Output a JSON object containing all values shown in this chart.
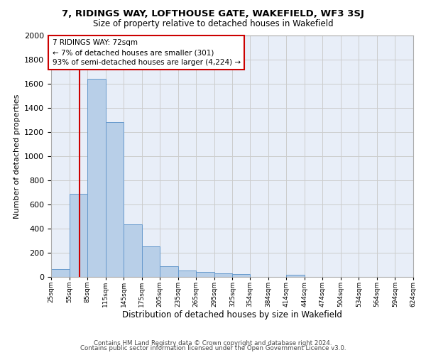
{
  "title1": "7, RIDINGS WAY, LOFTHOUSE GATE, WAKEFIELD, WF3 3SJ",
  "title2": "Size of property relative to detached houses in Wakefield",
  "xlabel": "Distribution of detached houses by size in Wakefield",
  "ylabel": "Number of detached properties",
  "footer1": "Contains HM Land Registry data © Crown copyright and database right 2024.",
  "footer2": "Contains public sector information licensed under the Open Government Licence v3.0.",
  "bin_edges": [
    25,
    55,
    85,
    115,
    145,
    175,
    205,
    235,
    265,
    295,
    325,
    354,
    384,
    414,
    444,
    474,
    504,
    534,
    564,
    594,
    624
  ],
  "bar_heights": [
    65,
    690,
    1640,
    1285,
    435,
    255,
    90,
    55,
    40,
    30,
    25,
    0,
    0,
    20,
    0,
    0,
    0,
    0,
    0,
    0
  ],
  "bar_color": "#b8cfe8",
  "bar_edge_color": "#6699cc",
  "x_tick_labels": [
    "25sqm",
    "55sqm",
    "85sqm",
    "115sqm",
    "145sqm",
    "175sqm",
    "205sqm",
    "235sqm",
    "265sqm",
    "295sqm",
    "325sqm",
    "354sqm",
    "384sqm",
    "414sqm",
    "444sqm",
    "474sqm",
    "504sqm",
    "534sqm",
    "564sqm",
    "594sqm",
    "624sqm"
  ],
  "ylim": [
    0,
    2000
  ],
  "yticks": [
    0,
    200,
    400,
    600,
    800,
    1000,
    1200,
    1400,
    1600,
    1800,
    2000
  ],
  "property_line_x": 72,
  "annotation_text": "7 RIDINGS WAY: 72sqm\n← 7% of detached houses are smaller (301)\n93% of semi-detached houses are larger (4,224) →",
  "annotation_box_color": "#ffffff",
  "annotation_border_color": "#cc0000",
  "grid_color": "#cccccc",
  "background_color": "#e8eef8",
  "title1_fontsize": 9.5,
  "title2_fontsize": 8.5,
  "xlabel_fontsize": 8.5,
  "ylabel_fontsize": 8.0
}
